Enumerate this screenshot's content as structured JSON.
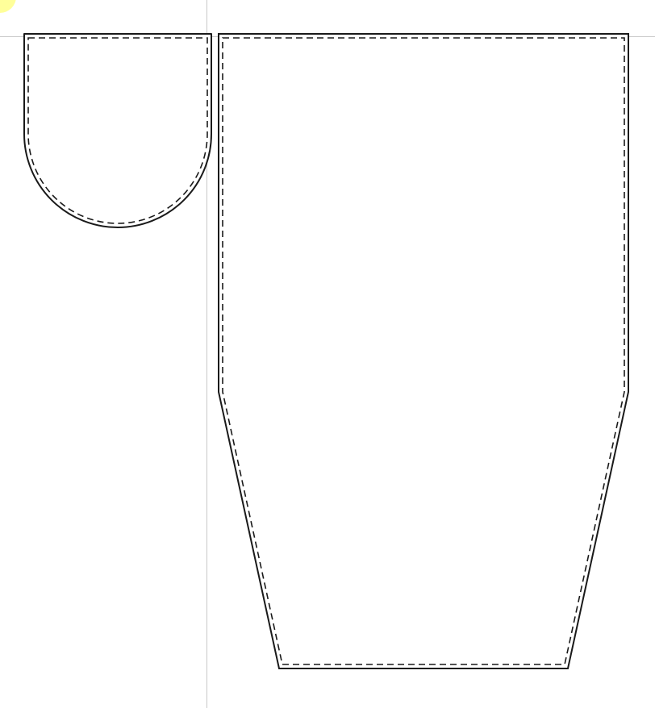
{
  "pattern": {
    "pieces": [
      {
        "id": "flap",
        "shape": "rounded-bottom"
      },
      {
        "id": "body",
        "shape": "tapered-bottom"
      }
    ],
    "colors": {
      "background": "#ffffff",
      "outline": "#1a1a1a",
      "seam_allowance": "#1a1a1a",
      "guide_line": "#c8c8c8",
      "highlight_dot": "#ffff9a"
    },
    "lines": {
      "cut_line": "solid",
      "stitch_line": "dashed"
    }
  }
}
